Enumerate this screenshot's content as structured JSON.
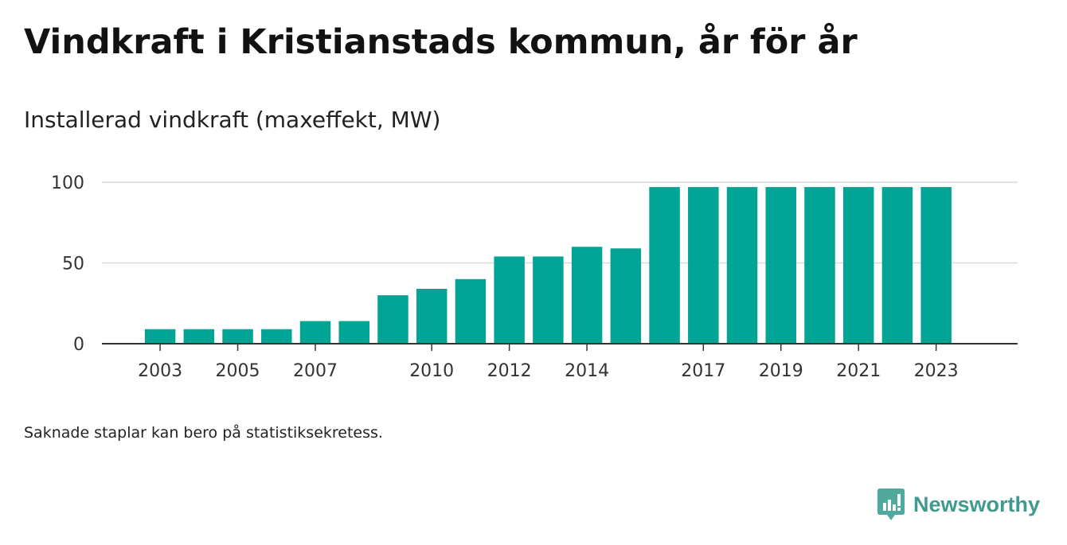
{
  "header": {
    "title": "Vindkraft i Kristianstads kommun, år för år",
    "subtitle": "Installerad vindkraft (maxeffekt, MW)"
  },
  "footnote": "Saknade staplar kan bero på statistiksekretess.",
  "brand": {
    "name": "Newsworthy",
    "icon": "newsworthy-logo-icon",
    "color": "#3f9a8f"
  },
  "chart_data": {
    "type": "bar",
    "x": [
      2003,
      2004,
      2005,
      2006,
      2007,
      2008,
      2009,
      2010,
      2011,
      2012,
      2013,
      2014,
      2015,
      2016,
      2017,
      2018,
      2019,
      2020,
      2021,
      2022,
      2023
    ],
    "values": [
      9,
      9,
      9,
      9,
      14,
      14,
      30,
      34,
      40,
      54,
      54,
      60,
      59,
      97,
      97,
      97,
      97,
      97,
      97,
      97,
      97
    ],
    "xticks": [
      2003,
      2005,
      2007,
      2010,
      2012,
      2014,
      2017,
      2019,
      2021,
      2023
    ],
    "yticks": [
      0,
      50,
      100
    ],
    "ylim": [
      0,
      100
    ],
    "xlim": [
      2001.5,
      2025.1
    ],
    "grid": true,
    "bar_color": "#02a496"
  }
}
